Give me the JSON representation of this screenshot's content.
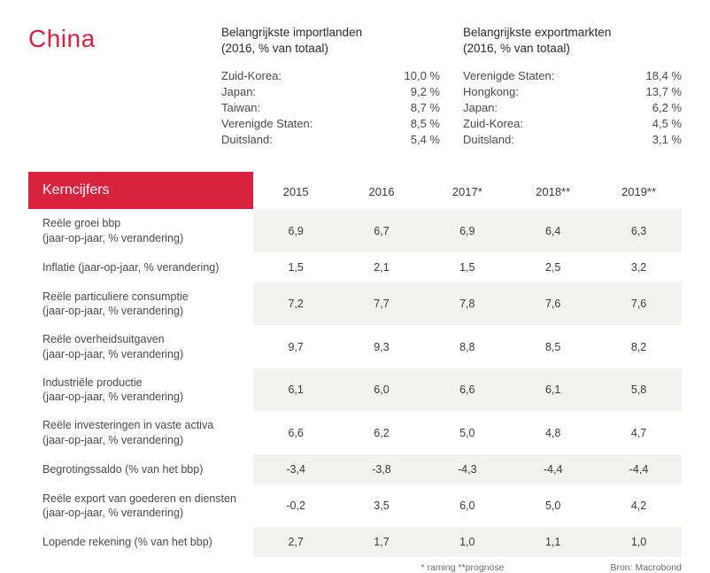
{
  "country": "China",
  "imports": {
    "header_line1": "Belangrijkste importlanden",
    "header_line2": "(2016, % van totaal)",
    "rows": [
      {
        "label": "Zuid-Korea:",
        "value": "10,0 %"
      },
      {
        "label": "Japan:",
        "value": "9,2 %"
      },
      {
        "label": "Taiwan:",
        "value": "8,7 %"
      },
      {
        "label": "Verenigde Staten:",
        "value": "8,5 %"
      },
      {
        "label": "Duitsland:",
        "value": "5,4 %"
      }
    ]
  },
  "exports": {
    "header_line1": "Belangrijkste exportmarkten",
    "header_line2": "(2016, % van totaal)",
    "rows": [
      {
        "label": "Verenigde Staten:",
        "value": "18,4 %"
      },
      {
        "label": "Hongkong:",
        "value": "13,7 %"
      },
      {
        "label": "Japan:",
        "value": "6,2 %"
      },
      {
        "label": "Zuid-Korea:",
        "value": "4,5 %"
      },
      {
        "label": "Duitsland:",
        "value": "3,1 %"
      }
    ]
  },
  "table": {
    "header_label": "Kerncijfers",
    "years": [
      "2015",
      "2016",
      "2017*",
      "2018**",
      "2019**"
    ],
    "rows": [
      {
        "label": "Reële groei bbp\n(jaar-op-jaar, % verandering)",
        "v": [
          "6,9",
          "6,7",
          "6,9",
          "6,4",
          "6,3"
        ]
      },
      {
        "label": "Inflatie (jaar-op-jaar, % verandering)",
        "v": [
          "1,5",
          "2,1",
          "1,5",
          "2,5",
          "3,2"
        ]
      },
      {
        "label": "Reële particuliere consumptie\n(jaar-op-jaar, % verandering)",
        "v": [
          "7,2",
          "7,7",
          "7,8",
          "7,6",
          "7,6"
        ]
      },
      {
        "label": "Reële overheidsuitgaven\n(jaar-op-jaar, % verandering)",
        "v": [
          "9,7",
          "9,3",
          "8,8",
          "8,5",
          "8,2"
        ]
      },
      {
        "label": "Industriële productie\n(jaar-op-jaar, % verandering)",
        "v": [
          "6,1",
          "6,0",
          "6,6",
          "6,1",
          "5,8"
        ]
      },
      {
        "label": "Reële investeringen in vaste activa\n(jaar-op-jaar, % verandering)",
        "v": [
          "6,6",
          "6,2",
          "5,0",
          "4,8",
          "4,7"
        ]
      },
      {
        "label": "Begrotingssaldo (% van het bbp)",
        "v": [
          "-3,4",
          "-3,8",
          "-4,3",
          "-4,4",
          "-4,4"
        ]
      },
      {
        "label": "Reële export van goederen en diensten\n(jaar-op-jaar, % verandering)",
        "v": [
          "-0,2",
          "3,5",
          "6,0",
          "5,0",
          "4,2"
        ]
      },
      {
        "label": "Lopende rekening (% van het bbp)",
        "v": [
          "2,7",
          "1,7",
          "1,0",
          "1,1",
          "1,0"
        ]
      }
    ]
  },
  "footnote": {
    "left": "* raming   **prognose",
    "right": "Bron: Macrobond"
  },
  "colors": {
    "accent": "#d8223e",
    "stripe": "#f2f2f0",
    "text": "#4a4a4a"
  }
}
